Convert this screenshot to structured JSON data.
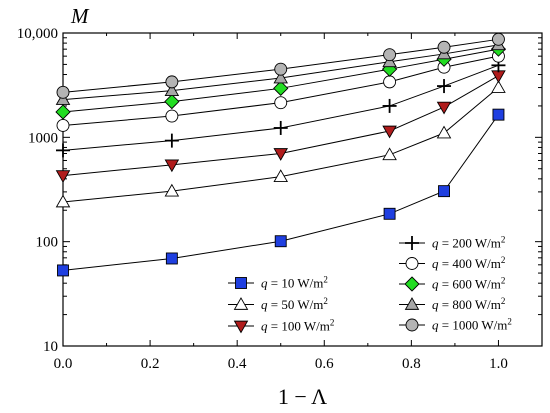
{
  "chart_data": {
    "type": "line",
    "xlabel": "1 − Λ",
    "ylabel": "M",
    "xlim": [
      0,
      1.1
    ],
    "ylim": [
      10,
      10000
    ],
    "y_scale": "log",
    "x_ticks": [
      0.0,
      0.2,
      0.4,
      0.6,
      0.8,
      1.0
    ],
    "x_tick_labels": [
      "0.0",
      "0.2",
      "0.4",
      "0.6",
      "0.8",
      "1.0"
    ],
    "y_ticks": [
      10,
      100,
      1000,
      10000
    ],
    "y_tick_labels": [
      "10",
      "100",
      "1000",
      "10,000"
    ],
    "grid": false,
    "x": [
      0,
      0.25,
      0.5,
      0.75,
      0.875,
      1.0
    ],
    "series": [
      {
        "q_symbol": "q",
        "eq": " = ",
        "value": "10",
        "unit": " W/m",
        "exp": "2",
        "marker": "square",
        "color": "#1f3fe0",
        "values": [
          53,
          69,
          101,
          185,
          305,
          1650
        ]
      },
      {
        "q_symbol": "q",
        "eq": " = ",
        "value": "50",
        "unit": " W/m",
        "exp": "2",
        "marker": "triangle-up",
        "color": "#ffffff",
        "values": [
          240,
          305,
          420,
          680,
          1100,
          3000
        ]
      },
      {
        "q_symbol": "q",
        "eq": " = ",
        "value": "100",
        "unit": " W/m",
        "exp": "2",
        "marker": "triangle-down",
        "color": "#b01c1c",
        "values": [
          430,
          545,
          700,
          1150,
          1950,
          3900
        ]
      },
      {
        "q_symbol": "q",
        "eq": " = ",
        "value": "200",
        "unit": " W/m",
        "exp": "2",
        "marker": "plus",
        "color": "#000000",
        "values": [
          750,
          930,
          1230,
          2000,
          3100,
          4900
        ]
      },
      {
        "q_symbol": "q",
        "eq": " = ",
        "value": "400",
        "unit": " W/m",
        "exp": "2",
        "marker": "circle-open",
        "color": "#ffffff",
        "values": [
          1300,
          1600,
          2150,
          3400,
          4700,
          6000
        ]
      },
      {
        "q_symbol": "q",
        "eq": " = ",
        "value": "600",
        "unit": " W/m",
        "exp": "2",
        "marker": "diamond",
        "color": "#22dd22",
        "values": [
          1750,
          2200,
          2950,
          4500,
          5600,
          7000
        ]
      },
      {
        "q_symbol": "q",
        "eq": " = ",
        "value": "800",
        "unit": " W/m",
        "exp": "2",
        "marker": "triangle-up-gray",
        "color": "#a8a8a8",
        "values": [
          2300,
          2800,
          3700,
          5300,
          6300,
          7700
        ]
      },
      {
        "q_symbol": "q",
        "eq": " = ",
        "value": "1000",
        "unit": " W/m",
        "exp": "2",
        "marker": "circle-gray",
        "color": "#b4b4b4",
        "values": [
          2700,
          3400,
          4500,
          6200,
          7300,
          8700
        ]
      }
    ],
    "legends": [
      {
        "placement": "bottom-center",
        "series_index": [
          0,
          1,
          2
        ]
      },
      {
        "placement": "bottom-right",
        "series_index": [
          3,
          4,
          5,
          6,
          7
        ]
      }
    ]
  }
}
